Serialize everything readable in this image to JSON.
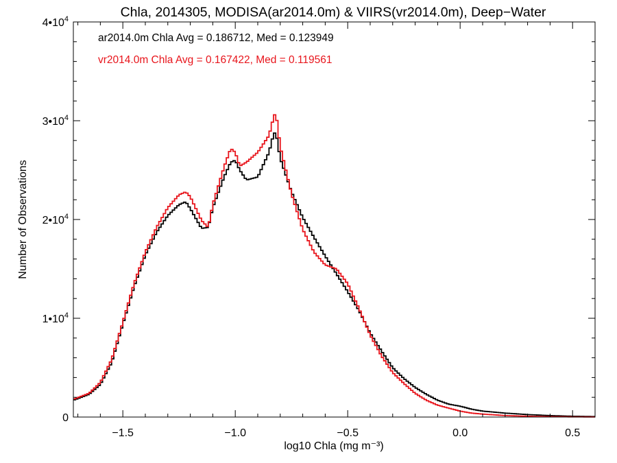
{
  "chart_data": {
    "type": "line",
    "title": "Chla, 2014305, MODISA(ar2014.0m) & VIIRS(vr2014.0m), Deep−Water",
    "xlabel": "log10 Chla (mg m⁻³)",
    "ylabel": "Number of Observations",
    "xlim": [
      -1.72,
      0.6
    ],
    "ylim": [
      0,
      40000
    ],
    "x_ticks": [
      {
        "value": -1.5,
        "label": "−1.5"
      },
      {
        "value": -1.0,
        "label": "−1.0"
      },
      {
        "value": -0.5,
        "label": "−0.5"
      },
      {
        "value": 0.0,
        "label": "0.0"
      },
      {
        "value": 0.5,
        "label": "0.5"
      }
    ],
    "y_ticks": [
      {
        "value": 0,
        "base": "0",
        "exp": ""
      },
      {
        "value": 10000,
        "base": "1•10",
        "exp": "4"
      },
      {
        "value": 20000,
        "base": "2•10",
        "exp": "4"
      },
      {
        "value": 30000,
        "base": "3•10",
        "exp": "4"
      },
      {
        "value": 40000,
        "base": "4•10",
        "exp": "4"
      }
    ],
    "grid": false,
    "annotations": [
      {
        "text": "ar2014.0m Chla Avg = 0.186712, Med = 0.123949",
        "color": "#000000"
      },
      {
        "text": "vr2014.0m Chla Avg = 0.167422, Med = 0.119561",
        "color": "#e8141b"
      }
    ],
    "x": [
      -1.72,
      -1.65,
      -1.6,
      -1.55,
      -1.5,
      -1.45,
      -1.4,
      -1.35,
      -1.3,
      -1.25,
      -1.22,
      -1.2,
      -1.15,
      -1.12,
      -1.1,
      -1.05,
      -1.02,
      -1.0,
      -0.98,
      -0.95,
      -0.9,
      -0.85,
      -0.83,
      -0.82,
      -0.8,
      -0.75,
      -0.7,
      -0.65,
      -0.6,
      -0.55,
      -0.5,
      -0.45,
      -0.4,
      -0.35,
      -0.3,
      -0.25,
      -0.2,
      -0.15,
      -0.1,
      -0.05,
      0.0,
      0.05,
      0.1,
      0.2,
      0.3,
      0.4,
      0.5,
      0.6
    ],
    "series": [
      {
        "name": "ar2014.0m",
        "color": "#000000",
        "values": [
          1700,
          2300,
          3300,
          5500,
          9400,
          13200,
          16400,
          18700,
          20400,
          21500,
          21800,
          21100,
          19100,
          19200,
          21200,
          24300,
          25800,
          26000,
          25000,
          24000,
          24300,
          26800,
          28600,
          28900,
          26200,
          22800,
          20200,
          18200,
          16300,
          14500,
          12700,
          10800,
          8500,
          6700,
          5000,
          3900,
          3000,
          2300,
          1700,
          1300,
          1100,
          800,
          600,
          400,
          250,
          150,
          80,
          50
        ]
      },
      {
        "name": "vr2014.0m",
        "color": "#e8141b",
        "values": [
          1800,
          2400,
          3500,
          5800,
          9600,
          13500,
          16700,
          19200,
          21200,
          22500,
          22800,
          22300,
          19900,
          19200,
          21500,
          25300,
          27200,
          26800,
          25400,
          25800,
          26800,
          28500,
          30300,
          30900,
          27400,
          22600,
          19000,
          16700,
          15400,
          15000,
          13500,
          11000,
          8300,
          6200,
          4500,
          3400,
          2400,
          1700,
          1200,
          900,
          600,
          400,
          300,
          150,
          80,
          40,
          20,
          10
        ]
      }
    ]
  }
}
